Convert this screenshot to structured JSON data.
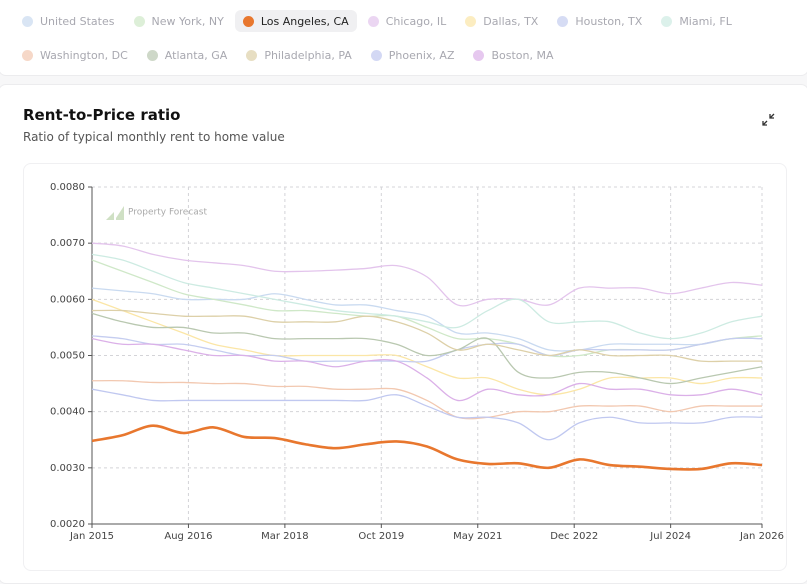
{
  "chart_data": {
    "type": "line",
    "title": "Rent-to-Price ratio",
    "subtitle": "Ratio of typical monthly rent to home value",
    "watermark": "Property Forecast",
    "x": [
      "2015-01",
      "2015-07",
      "2016-01",
      "2016-07",
      "2017-01",
      "2017-07",
      "2018-01",
      "2018-07",
      "2019-01",
      "2019-07",
      "2020-01",
      "2020-07",
      "2021-01",
      "2021-07",
      "2022-01",
      "2022-07",
      "2023-01",
      "2023-07",
      "2024-01",
      "2024-07",
      "2025-01",
      "2025-07",
      "2026-01"
    ],
    "xlim": [
      "2015-01",
      "2026-01"
    ],
    "xticks": [
      {
        "value": "2015-01",
        "label": "Jan 2015"
      },
      {
        "value": "2016-08",
        "label": "Aug 2016"
      },
      {
        "value": "2018-03",
        "label": "Mar 2018"
      },
      {
        "value": "2019-10",
        "label": "Oct 2019"
      },
      {
        "value": "2021-05",
        "label": "May 2021"
      },
      {
        "value": "2022-12",
        "label": "Dec 2022"
      },
      {
        "value": "2024-07",
        "label": "Jul 2024"
      },
      {
        "value": "2026-01",
        "label": "Jan 2026"
      }
    ],
    "ylim": [
      0.002,
      0.008
    ],
    "yticks": [
      {
        "value": 0.002,
        "label": "0.0020"
      },
      {
        "value": 0.003,
        "label": "0.0030"
      },
      {
        "value": 0.004,
        "label": "0.0040"
      },
      {
        "value": 0.005,
        "label": "0.0050"
      },
      {
        "value": 0.006,
        "label": "0.0060"
      },
      {
        "value": 0.007,
        "label": "0.0070"
      },
      {
        "value": 0.008,
        "label": "0.0080"
      }
    ],
    "grid": true,
    "series": [
      {
        "name": "United States",
        "color": "#c9daf0",
        "active": false,
        "values": [
          0.0062,
          0.00615,
          0.0061,
          0.006,
          0.006,
          0.006,
          0.0061,
          0.006,
          0.0059,
          0.0059,
          0.0058,
          0.0057,
          0.0054,
          0.0054,
          0.0053,
          0.0051,
          0.0051,
          0.0052,
          0.0052,
          0.0052,
          0.0052,
          0.0053,
          0.0053
        ]
      },
      {
        "name": "New York, NY",
        "color": "#cfe8c8",
        "active": false,
        "values": [
          0.0067,
          0.0065,
          0.0063,
          0.0061,
          0.006,
          0.0059,
          0.0058,
          0.0058,
          0.00575,
          0.0057,
          0.0057,
          0.0055,
          0.0053,
          0.0053,
          0.0052,
          0.005,
          0.005,
          0.0051,
          0.0051,
          0.0051,
          0.0052,
          0.0053,
          0.00535
        ]
      },
      {
        "name": "Los Angeles, CA",
        "color": "#e8772e",
        "active": true,
        "values": [
          0.00348,
          0.00358,
          0.00375,
          0.00362,
          0.00372,
          0.00355,
          0.00353,
          0.00342,
          0.00335,
          0.00342,
          0.00347,
          0.00338,
          0.00315,
          0.00307,
          0.00308,
          0.003,
          0.00315,
          0.00305,
          0.00302,
          0.00298,
          0.00298,
          0.00308,
          0.00305
        ]
      },
      {
        "name": "Chicago, IL",
        "color": "#e3c4ec",
        "active": false,
        "values": [
          0.007,
          0.00695,
          0.0068,
          0.0067,
          0.00665,
          0.0066,
          0.0065,
          0.0065,
          0.00652,
          0.00655,
          0.0066,
          0.0064,
          0.0059,
          0.006,
          0.006,
          0.0059,
          0.0062,
          0.0062,
          0.0062,
          0.0061,
          0.0062,
          0.0063,
          0.00625
        ]
      },
      {
        "name": "Dallas, TX",
        "color": "#fbe6a6",
        "active": false,
        "values": [
          0.006,
          0.0058,
          0.0056,
          0.0054,
          0.0052,
          0.0051,
          0.005,
          0.005,
          0.005,
          0.005,
          0.005,
          0.0048,
          0.0046,
          0.0046,
          0.0044,
          0.0043,
          0.0044,
          0.0046,
          0.0046,
          0.0046,
          0.0045,
          0.0046,
          0.0046
        ]
      },
      {
        "name": "Houston, TX",
        "color": "#c5cdf0",
        "active": false,
        "values": [
          0.00535,
          0.0053,
          0.0052,
          0.0052,
          0.0051,
          0.005,
          0.005,
          0.0049,
          0.0049,
          0.0049,
          0.0049,
          0.0049,
          0.0051,
          0.0052,
          0.0052,
          0.005,
          0.0051,
          0.0051,
          0.0051,
          0.0051,
          0.0052,
          0.0053,
          0.0053
        ]
      },
      {
        "name": "Miami, FL",
        "color": "#cdebe2",
        "active": false,
        "values": [
          0.0068,
          0.0067,
          0.0065,
          0.0063,
          0.0062,
          0.0061,
          0.006,
          0.0059,
          0.0058,
          0.00575,
          0.0057,
          0.0056,
          0.0055,
          0.0058,
          0.006,
          0.0056,
          0.0056,
          0.0056,
          0.0054,
          0.0053,
          0.0054,
          0.0056,
          0.0057
        ]
      },
      {
        "name": "Washington, DC",
        "color": "#f2c8b0",
        "active": false,
        "values": [
          0.00455,
          0.00455,
          0.00452,
          0.00452,
          0.0045,
          0.0045,
          0.00445,
          0.00445,
          0.0044,
          0.0044,
          0.0044,
          0.0042,
          0.0039,
          0.0039,
          0.004,
          0.004,
          0.0041,
          0.0041,
          0.0041,
          0.004,
          0.0041,
          0.0041,
          0.0041
        ]
      },
      {
        "name": "Atlanta, GA",
        "color": "#b9c8b0",
        "active": false,
        "values": [
          0.00575,
          0.0056,
          0.0055,
          0.0055,
          0.0054,
          0.0054,
          0.0053,
          0.0053,
          0.0053,
          0.0053,
          0.0052,
          0.005,
          0.0051,
          0.0053,
          0.0047,
          0.0046,
          0.0047,
          0.0047,
          0.0046,
          0.0045,
          0.0046,
          0.0047,
          0.0048
        ]
      },
      {
        "name": "Philadelphia, PA",
        "color": "#ddd0a8",
        "active": false,
        "values": [
          0.0058,
          0.0058,
          0.00575,
          0.0057,
          0.0057,
          0.0057,
          0.0056,
          0.0056,
          0.0056,
          0.0057,
          0.0056,
          0.0054,
          0.0051,
          0.0052,
          0.0051,
          0.005,
          0.0051,
          0.005,
          0.005,
          0.005,
          0.0049,
          0.0049,
          0.0049
        ]
      },
      {
        "name": "Phoenix, AZ",
        "color": "#c0c8f0",
        "active": false,
        "values": [
          0.0044,
          0.0043,
          0.0042,
          0.0042,
          0.0042,
          0.0042,
          0.0042,
          0.0042,
          0.0042,
          0.0042,
          0.0043,
          0.0041,
          0.0039,
          0.0039,
          0.0038,
          0.0035,
          0.0038,
          0.0039,
          0.0038,
          0.0038,
          0.0038,
          0.0039,
          0.0039
        ]
      },
      {
        "name": "Boston, MA",
        "color": "#dbb0e8",
        "active": false,
        "values": [
          0.0053,
          0.0052,
          0.0052,
          0.0051,
          0.005,
          0.005,
          0.0049,
          0.0049,
          0.0048,
          0.0049,
          0.0049,
          0.0046,
          0.0042,
          0.0044,
          0.0043,
          0.0043,
          0.0045,
          0.0044,
          0.0044,
          0.0043,
          0.0043,
          0.0044,
          0.0043
        ]
      }
    ]
  }
}
